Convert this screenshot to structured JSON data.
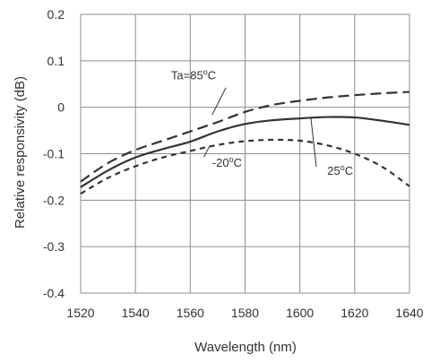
{
  "chart_data": {
    "type": "line",
    "title": "",
    "xlabel": "Wavelength  (nm)",
    "ylabel": "Relative  responsivity  (dB)",
    "xlim": [
      1520,
      1640
    ],
    "ylim": [
      -0.4,
      0.2
    ],
    "x_ticks": [
      "1520",
      "1540",
      "1560",
      "1580",
      "1600",
      "1620",
      "1640"
    ],
    "y_ticks": [
      "0.2",
      "0.1",
      "0",
      "-0.1",
      "-0.2",
      "-0.3",
      "-0.4"
    ],
    "grid": true,
    "series": [
      {
        "name": "Ta=85oC",
        "style": "long-dash",
        "color": "#333333",
        "x": [
          1520,
          1530,
          1540,
          1550,
          1560,
          1570,
          1580,
          1590,
          1600,
          1610,
          1620,
          1630,
          1640
        ],
        "y": [
          -0.16,
          -0.12,
          -0.092,
          -0.072,
          -0.052,
          -0.032,
          -0.01,
          0.005,
          0.014,
          0.021,
          0.026,
          0.03,
          0.033
        ]
      },
      {
        "name": "25oC",
        "style": "solid",
        "color": "#333333",
        "x": [
          1520,
          1530,
          1540,
          1550,
          1560,
          1570,
          1580,
          1590,
          1600,
          1610,
          1620,
          1630,
          1640
        ],
        "y": [
          -0.172,
          -0.136,
          -0.108,
          -0.09,
          -0.074,
          -0.052,
          -0.036,
          -0.028,
          -0.024,
          -0.021,
          -0.022,
          -0.029,
          -0.038
        ]
      },
      {
        "name": "-20oC",
        "style": "short-dash",
        "color": "#333333",
        "x": [
          1520,
          1530,
          1540,
          1550,
          1560,
          1570,
          1580,
          1590,
          1600,
          1610,
          1620,
          1630,
          1640
        ],
        "y": [
          -0.186,
          -0.152,
          -0.127,
          -0.108,
          -0.094,
          -0.081,
          -0.073,
          -0.07,
          -0.072,
          -0.082,
          -0.1,
          -0.128,
          -0.17
        ]
      }
    ],
    "annotations": [
      {
        "id": "85",
        "base": "Ta=85",
        "sup": "o",
        "tail": "C",
        "x": 1553,
        "y": 0.06
      },
      {
        "id": "25",
        "base": "25",
        "sup": "o",
        "tail": "C",
        "x": 1610,
        "y": -0.145
      },
      {
        "id": "m20",
        "base": "-20",
        "sup": "o",
        "tail": "C",
        "x": 1568,
        "y": -0.128
      }
    ]
  }
}
